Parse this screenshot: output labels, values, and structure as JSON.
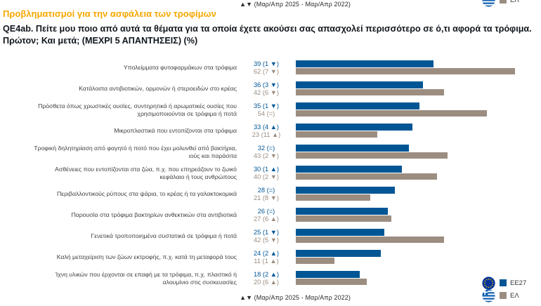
{
  "notes": {
    "top": "▲▼ (Μαρ/Απρ 2025 - Μαρ/Απρ 2022)",
    "bottom": "▲▼ (Μαρ/Απρ 2025 - Μαρ/Απρ 2022)"
  },
  "heading": "Προβληματισμοί για την ασφάλεια των τροφίμων",
  "title": "QE4ab. Πείτε μου ποιο από αυτά τα θέματα για τα οποία έχετε ακούσει σας απασχολεί περισσότερο σε ό,τι αφορά τα τρόφιμα. Πρώτον; Και μετά; (ΜΕΧΡΙ 5 ΑΠΑΝΤΗΣΕΙΣ) (%)",
  "legend": {
    "eu_label": "EE27",
    "el_label": "ΕΛ"
  },
  "colors": {
    "eu": "#005694",
    "el": "#9c8d81",
    "heading": "#f5a700"
  },
  "chart_data": {
    "type": "bar",
    "orientation": "horizontal",
    "unit": "%",
    "axis_range": [
      0,
      70
    ],
    "grid": false,
    "legend_position": "bottom-right",
    "categories": [
      "Υπολείμματα φυτοφαρμάκων στα τρόφιμα",
      "Κατάλοιπα αντιβιοτικών, ορμονών ή στεροειδών στο κρέας",
      "Πρόσθετα όπως χρωστικές ουσίες, συντηρητικά ή αρωματικές ουσίες που\nχρησιμοποιούνται σε τρόφιμα ή ποτά",
      "Μικροπλαστικά που εντοπίζονται στα τρόφιμα",
      "Τροφική δηλητηρίαση από φαγητό ή ποτό που έχει μολυνθεί από βακτήρια,\nιούς και παράσιτα",
      "Ασθένειες που εντοπίζονται στα ζώα, π.χ. που επηρεάζουν το ζωικό\nκεφάλαιο ή τους ανθρώπους",
      "Περιβαλλοντικούς ρύπους στα ψάρια, το κρέας ή τα γαλακτοκομικά",
      "Παρουσία στα τρόφιμα βακτηρίων ανθεκτικών στα αντιβιοτικά",
      "Γενετικά τροποποιημένα συστατικά σε τρόφιμα ή ποτά",
      "Καλή μεταχείριση των ζώων εκτροφής, π.χ. κατά τη μεταφορά τους",
      "Ίχνη υλικών που έρχονται σε επαφή με τα τρόφιμα, π.χ. πλαστικό ή\nαλουμίνιο στις συσκευασίες"
    ],
    "series": [
      {
        "name": "EE27",
        "color": "#005694",
        "values": [
          39,
          36,
          35,
          33,
          32,
          30,
          28,
          26,
          25,
          24,
          18
        ],
        "changes": [
          "(1 ▼)",
          "(3 ▼)",
          "(1 ▼)",
          "(4 ▲)",
          "(=)",
          "(1 ▲)",
          "(=)",
          "(=)",
          "(1 ▼)",
          "(2 ▲)",
          "(2 ▲)"
        ]
      },
      {
        "name": "ΕΛ",
        "color": "#9c8d81",
        "values": [
          62,
          42,
          54,
          23,
          43,
          40,
          21,
          27,
          42,
          11,
          20
        ],
        "changes": [
          "(7 ▼)",
          "(6 ▼)",
          "(=)",
          "(11 ▲)",
          "(2 ▼)",
          "(2 ▼)",
          "(8 ▼)",
          "(6 ▲)",
          "(5 ▼)",
          "(1 ▲)",
          "(6 ▲)"
        ]
      }
    ]
  }
}
